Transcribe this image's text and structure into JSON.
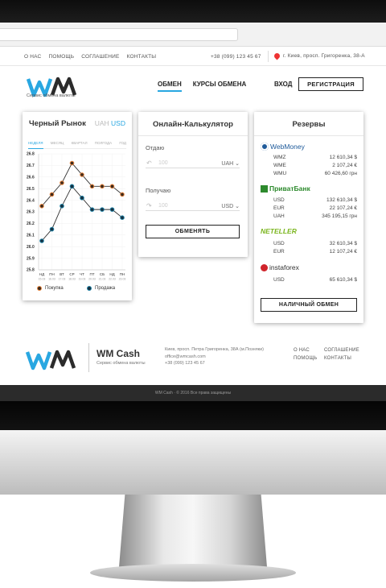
{
  "topnav": {
    "links": [
      "О НАС",
      "ПОМОЩЬ",
      "СОГЛАШЕНИЕ",
      "КОНТАКТЫ"
    ],
    "phone": "+38 (099) 123 45 67",
    "address": "г. Киев, просп. Григоренка, 38-А"
  },
  "header": {
    "logo_text": "WM",
    "logo_sub": "Сервис обмена валюты",
    "nav": [
      "ОБМЕН",
      "КУРСЫ ОБМЕНА"
    ],
    "login": "ВХОД",
    "register": "РЕГИСТРАЦИЯ"
  },
  "market": {
    "title": "Черный Рынок",
    "cur_a": "UAH",
    "cur_b": "USD",
    "tabs": [
      "НЕДЕЛЯ",
      "МЕСЯЦ",
      "КВАРТАЛ",
      "ПОЛГОДА",
      "ГОД"
    ],
    "legend_buy": "Покупка",
    "legend_sell": "Продажа"
  },
  "chart_data": {
    "type": "line",
    "categories": [
      "НД",
      "ПН",
      "ВТ",
      "СР",
      "ЧТ",
      "ПТ",
      "СБ",
      "НД",
      "ПН"
    ],
    "x_sublabels": [
      "15.03",
      "16.03",
      "17.03",
      "18.03",
      "19.03",
      "20.03",
      "21.03",
      "22.03",
      "23.03"
    ],
    "y_ticks": [
      25.8,
      25.9,
      26.0,
      26.1,
      26.2,
      26.3,
      26.4,
      26.5,
      26.6,
      26.7,
      26.8
    ],
    "ylim": [
      25.8,
      26.8
    ],
    "series": [
      {
        "name": "Покупка",
        "values": [
          26.35,
          26.45,
          26.55,
          26.72,
          26.62,
          26.52,
          26.52,
          26.52,
          26.45
        ]
      },
      {
        "name": "Продажа",
        "values": [
          26.05,
          26.15,
          26.35,
          26.52,
          26.42,
          26.32,
          26.32,
          26.32,
          26.25
        ]
      }
    ],
    "colors": {
      "buy": "#e8833a",
      "sell": "#1c7fa3"
    }
  },
  "calc": {
    "title": "Онлайн-Калькулятор",
    "give_label": "Отдаю",
    "give_amount": "100",
    "give_currency": "UAH",
    "get_label": "Получаю",
    "get_amount": "100",
    "get_currency": "USD",
    "button": "ОБМЕНЯТЬ"
  },
  "reserves": {
    "title": "Резервы",
    "groups": [
      {
        "brand": "WebMoney",
        "rows": [
          [
            "WMZ",
            "12 610,34 $"
          ],
          [
            "WME",
            "2 107,24 €"
          ],
          [
            "WMU",
            "60 426,60 грн"
          ]
        ]
      },
      {
        "brand": "ПриватБанк",
        "rows": [
          [
            "USD",
            "132 610,34 $"
          ],
          [
            "EUR",
            "22 107,24 €"
          ],
          [
            "UAH",
            "345 195,15 грн"
          ]
        ]
      },
      {
        "brand": "NETELLER",
        "rows": [
          [
            "USD",
            "32 610,34 $"
          ],
          [
            "EUR",
            "12 107,24 €"
          ]
        ]
      },
      {
        "brand": "instaforex",
        "rows": [
          [
            "USD",
            "65 610,34 $"
          ]
        ]
      }
    ],
    "button": "НАЛИЧНЫЙ ОБМЕН"
  },
  "footer": {
    "name": "WM Cash",
    "sub": "Сервис обмена валюты",
    "address": "Киев, просп. Петра Григоренка, 38А (м.Позняки)",
    "email": "office@wmcash.com",
    "phone": "+38 (099) 123 45 67",
    "links": [
      "О НАС",
      "СОГЛАШЕНИЕ",
      "ПОМОЩЬ",
      "КОНТАКТЫ"
    ],
    "copyright": "WM Cash · © 2016 Все права защищены"
  },
  "colors": {
    "accent": "#29a7e1",
    "dark": "#222222"
  }
}
